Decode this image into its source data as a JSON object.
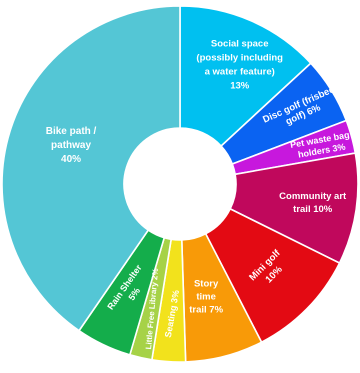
{
  "chart_data": {
    "type": "pie",
    "donut": true,
    "title": "",
    "legend": "none",
    "slices": [
      {
        "label_lines": [
          "Social space",
          "(possibly including",
          "a water feature)",
          "13%"
        ],
        "value": 13,
        "color": "#00C0F0"
      },
      {
        "label_lines": [
          "Disc golf (frisbee",
          "golf) 6%"
        ],
        "value": 6,
        "color": "#0A63F2"
      },
      {
        "label_lines": [
          "Pet waste bag",
          "holders 3%"
        ],
        "value": 3,
        "color": "#C718DD"
      },
      {
        "label_lines": [
          "Community art",
          "trail 10%"
        ],
        "value": 10,
        "color": "#C0085C"
      },
      {
        "label_lines": [
          "Mini golf",
          "10%"
        ],
        "value": 10,
        "color": "#E30A13"
      },
      {
        "label_lines": [
          "Story",
          "time",
          "trail 7%"
        ],
        "value": 7,
        "color": "#F89A08"
      },
      {
        "label_lines": [
          "Seating 3%"
        ],
        "value": 3,
        "color": "#F2E21C"
      },
      {
        "label_lines": [
          "Little Free Library 2%"
        ],
        "value": 2,
        "color": "#A6D247"
      },
      {
        "label_lines": [
          "Rain Shelter",
          "5%"
        ],
        "value": 5,
        "color": "#14AD4B"
      },
      {
        "label_lines": [
          "Bike path /",
          "pathway",
          "40%"
        ],
        "value": 40,
        "color": "#54C6D5"
      }
    ]
  }
}
